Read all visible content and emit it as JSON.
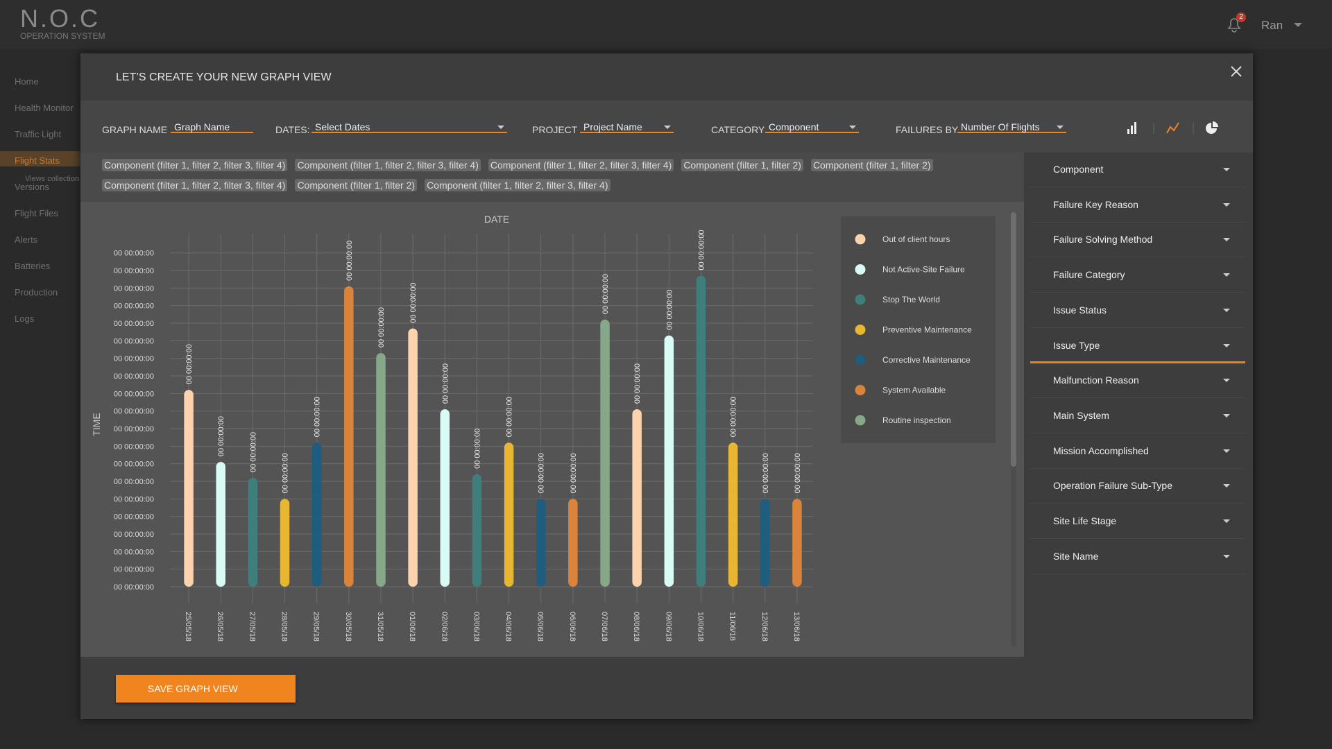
{
  "header": {
    "logo": "N.O.C",
    "subtitle": "OPERATION SYSTEM",
    "notifications": "2",
    "user": "Ran"
  },
  "sidebar": {
    "items": [
      "Home",
      "Health Monitor",
      "Traffic Light",
      "Flight Stats",
      "Versions",
      "Flight Files",
      "Alerts",
      "Batteries",
      "Production",
      "Logs"
    ],
    "active_index": 3,
    "sub_item": "Views collection"
  },
  "modal": {
    "title": "LET’S CREATE YOUR NEW GRAPH VIEW",
    "filters": [
      {
        "label": "GRAPH NAME",
        "value": "Graph Name"
      },
      {
        "label": "DATES:",
        "value": "Select Dates"
      },
      {
        "label": "PROJECT",
        "value": "Project Name"
      },
      {
        "label": "CATEGORY",
        "value": "Component"
      },
      {
        "label": "FAILURES BY",
        "value": "Number Of Flights"
      }
    ],
    "chips": [
      [
        "Component (filter 1, filter 2, filter 3, filter 4)",
        "Component (filter 1, filter 2, filter 3, filter 4)",
        "Component (filter 1, filter 2, filter 3, filter 4)",
        "Component (filter 1, filter 2)",
        "Component (filter 1, filter 2)"
      ],
      [
        "Component (filter 1, filter 2, filter 3, filter 4)",
        "Component (filter 1, filter 2)",
        "Component (filter 1, filter 2, filter 3, filter 4)"
      ]
    ],
    "save": "SAVE GRAPH VIEW"
  },
  "side_panel": {
    "items": [
      "Component",
      "Failure Key Reason",
      "Failure Solving Method",
      "Failure Category",
      "Issue Status",
      "Issue Type",
      "Malfunction Reason",
      "Main System",
      "Mission Accomplished",
      "Operation Failure Sub-Type",
      "Site Life Stage",
      "Site Name"
    ],
    "active_index": 5
  },
  "chart_data": {
    "type": "bar",
    "x_label": "DATE",
    "y_label": "TIME",
    "categories": [
      "25/05/18",
      "26/05/18",
      "27/05/18",
      "28/05/18",
      "29/05/18",
      "30/05/18",
      "31/05/18",
      "01/06/18",
      "02/06/18",
      "03/06/18",
      "04/06/18",
      "05/06/18",
      "06/06/18",
      "07/06/18",
      "08/06/18",
      "09/06/18",
      "10/06/18",
      "11/06/18",
      "12/06/18",
      "13/06/18"
    ],
    "values": [
      11.2,
      7.1,
      6.2,
      5.0,
      8.2,
      17.1,
      13.3,
      14.7,
      10.1,
      6.4,
      8.2,
      5.0,
      5.0,
      15.2,
      10.1,
      14.3,
      17.7,
      8.2,
      5.0,
      5.0
    ],
    "value_labels": [
      "00 00:00:00",
      "00 00:00:00",
      "00 00:00:00",
      "00 00:00:00",
      "00 00:00:00",
      "00 00:00:00",
      "00 00:00:00",
      "00 00:00:00",
      "00 00:00:00",
      "00 00:00:00",
      "00 00:00:00",
      "00 00:00:00",
      "00 00:00:00",
      "00 00:00:00",
      "00 00:00:00",
      "00 00:00:00",
      "00 00:00:00",
      "00 00:00:00",
      "00 00:00:00",
      "00 00:00:00"
    ],
    "colors": [
      "#fcd3ad",
      "#d8fbf6",
      "#3e7e7b",
      "#e8b631",
      "#1e5d7d",
      "#d9843a",
      "#86a889",
      "#fcd3ad",
      "#d8fbf6",
      "#3e7e7b",
      "#e8b631",
      "#1e5d7d",
      "#d9843a",
      "#86a889",
      "#fcd3ad",
      "#d8fbf6",
      "#3e7e7b",
      "#e8b631",
      "#1e5d7d",
      "#d9843a"
    ],
    "legend": [
      {
        "name": "Out of client hours",
        "color": "#fcd3ad"
      },
      {
        "name": "Not Active-Site Failure",
        "color": "#d8fbf6"
      },
      {
        "name": "Stop The World",
        "color": "#3e7e7b"
      },
      {
        "name": "Preventive Maintenance",
        "color": "#e8b631"
      },
      {
        "name": "Corrective Maintenance",
        "color": "#1e5d7d"
      },
      {
        "name": "System Available",
        "color": "#d9843a"
      },
      {
        "name": "Routine inspection",
        "color": "#86a889"
      }
    ],
    "ylim": [
      0,
      19.7
    ],
    "yticks": [
      {
        "value": 0,
        "label": "00 00:00:00"
      },
      {
        "value": 1,
        "label": "00 00:00:00"
      },
      {
        "value": 2,
        "label": "00 00:00:00"
      },
      {
        "value": 3,
        "label": "00 00:00:00"
      },
      {
        "value": 4,
        "label": "00 00:00:00"
      },
      {
        "value": 5,
        "label": "00 00:00:00"
      },
      {
        "value": 6,
        "label": "00 00:00:00"
      },
      {
        "value": 7,
        "label": "00 00:00:00"
      },
      {
        "value": 8,
        "label": "00 00:00:00"
      },
      {
        "value": 9,
        "label": "00 00:00:00"
      },
      {
        "value": 10,
        "label": "00 00:00:00"
      },
      {
        "value": 11,
        "label": "00 00:00:00"
      },
      {
        "value": 12,
        "label": "00 00:00:00"
      },
      {
        "value": 13,
        "label": "00 00:00:00"
      },
      {
        "value": 14,
        "label": "00 00:00:00"
      },
      {
        "value": 15,
        "label": "00 00:00:00"
      },
      {
        "value": 16,
        "label": "00 00:00:00"
      },
      {
        "value": 17,
        "label": "00 00:00:00"
      },
      {
        "value": 18,
        "label": "00 00:00:00"
      },
      {
        "value": 19,
        "label": "00 00:00:00"
      }
    ],
    "grid": true
  }
}
